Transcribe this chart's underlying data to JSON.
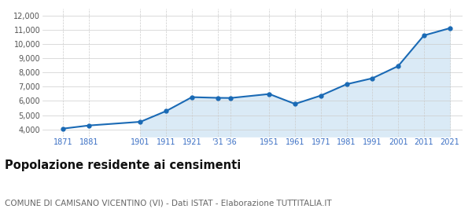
{
  "years": [
    1871,
    1881,
    1901,
    1911,
    1921,
    1931,
    1936,
    1951,
    1961,
    1971,
    1981,
    1991,
    2001,
    2011,
    2021
  ],
  "population": [
    4050,
    4270,
    4530,
    5290,
    6270,
    6220,
    6210,
    6490,
    5790,
    6380,
    7180,
    7600,
    8460,
    10620,
    11130
  ],
  "fill_start_year": 1901,
  "x_ticks": [
    1871,
    1881,
    1901,
    1911,
    1921,
    1931,
    1936,
    1951,
    1961,
    1971,
    1981,
    1991,
    2001,
    2011,
    2021
  ],
  "x_tick_labels": [
    "1871",
    "1881",
    "1901",
    "1911",
    "1921",
    "'31",
    "'36",
    "1951",
    "1961",
    "1971",
    "1981",
    "1991",
    "2001",
    "2011",
    "2021"
  ],
  "ylim": [
    3500,
    12500
  ],
  "yticks": [
    4000,
    5000,
    6000,
    7000,
    8000,
    9000,
    10000,
    11000,
    12000
  ],
  "ytick_labels": [
    "4,000",
    "5,000",
    "6,000",
    "7,000",
    "8,000",
    "9,000",
    "10,000",
    "11,000",
    "12,000"
  ],
  "line_color": "#1a6ab5",
  "fill_color": "#daeaf6",
  "marker_size": 3.5,
  "title": "Popolazione residente ai censimenti",
  "subtitle": "COMUNE DI CAMISANO VICENTINO (VI) - Dati ISTAT - Elaborazione TUTTITALIA.IT",
  "title_fontsize": 10.5,
  "subtitle_fontsize": 7.5,
  "bg_color": "#ffffff",
  "grid_color": "#cccccc",
  "xlim_left": 1863,
  "xlim_right": 2026
}
